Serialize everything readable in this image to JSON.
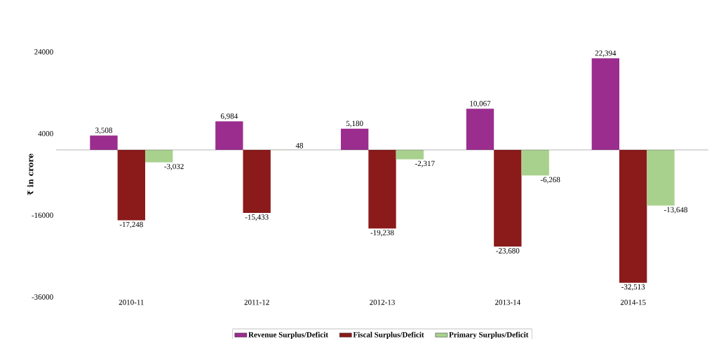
{
  "chart_data": {
    "type": "bar",
    "ylabel": "₹ in crore",
    "categories": [
      "2010-11",
      "2011-12",
      "2012-13",
      "2013-14",
      "2014-15"
    ],
    "series": [
      {
        "name": "Revenue Surplus/Deficit",
        "color": "#9b2d8f",
        "values": [
          3508,
          6984,
          5180,
          10067,
          22394
        ],
        "value_labels": [
          "3,508",
          "6,984",
          "5,180",
          "10,067",
          "22,394"
        ]
      },
      {
        "name": "Fiscal Surplus/Deficit",
        "color": "#8b1a1a",
        "values": [
          -17248,
          -15433,
          -19238,
          -23680,
          -32513
        ],
        "value_labels": [
          "-17,248",
          "-15,433",
          "-19,238",
          "-23,680",
          "-32,513"
        ]
      },
      {
        "name": "Primary Surplus/Deficit",
        "color": "#a9d18e",
        "values": [
          -3032,
          48,
          -2317,
          -6268,
          -13648
        ],
        "value_labels": [
          "-3,032",
          "48",
          "-2,317",
          "-6,268",
          "-13,648"
        ]
      }
    ],
    "ylim": [
      -36000,
      24000
    ],
    "yticks": [
      -36000,
      -16000,
      4000,
      24000
    ],
    "grid": false,
    "legend": "bottom"
  }
}
